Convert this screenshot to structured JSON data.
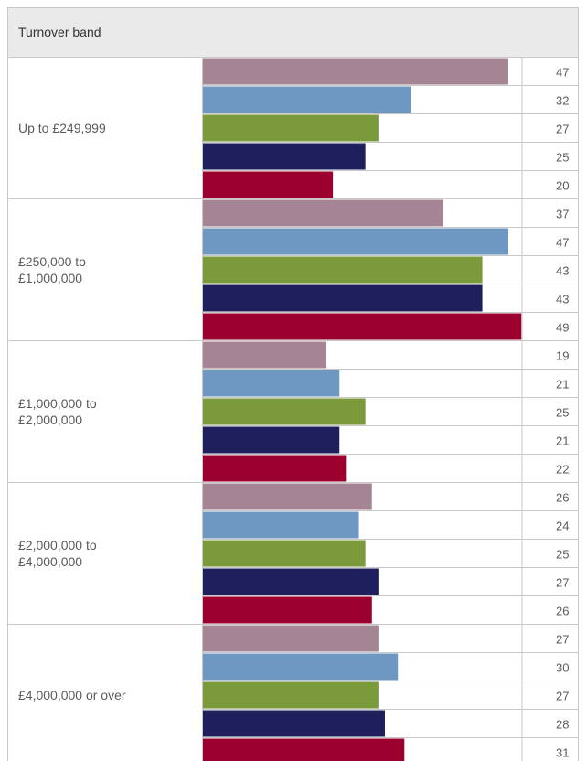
{
  "header": {
    "column_label": "Turnover band"
  },
  "chart_data": {
    "type": "bar",
    "orientation": "horizontal",
    "categories": [
      [
        "Up to £249,999"
      ],
      [
        "£250,000 to",
        "£1,000,000"
      ],
      [
        "£1,000,000 to",
        "£2,000,000"
      ],
      [
        "£2,000,000 to",
        "£4,000,000"
      ],
      [
        "£4,000,000 or over"
      ]
    ],
    "series": [
      {
        "color": "#a58593",
        "values": [
          47,
          37,
          19,
          26,
          27
        ]
      },
      {
        "color": "#6e97c2",
        "values": [
          32,
          47,
          21,
          24,
          30
        ]
      },
      {
        "color": "#7a9a3c",
        "values": [
          27,
          43,
          25,
          25,
          27
        ]
      },
      {
        "color": "#1f1f5e",
        "values": [
          25,
          43,
          21,
          27,
          28
        ]
      },
      {
        "color": "#9b002e",
        "values": [
          20,
          49,
          22,
          26,
          31
        ]
      }
    ],
    "xlim": [
      0,
      51
    ],
    "grid": true,
    "legend": "none"
  },
  "colors": {
    "header_bg": "#eaeaea",
    "border": "#c8c8c8",
    "text": "#5a5a5a"
  }
}
